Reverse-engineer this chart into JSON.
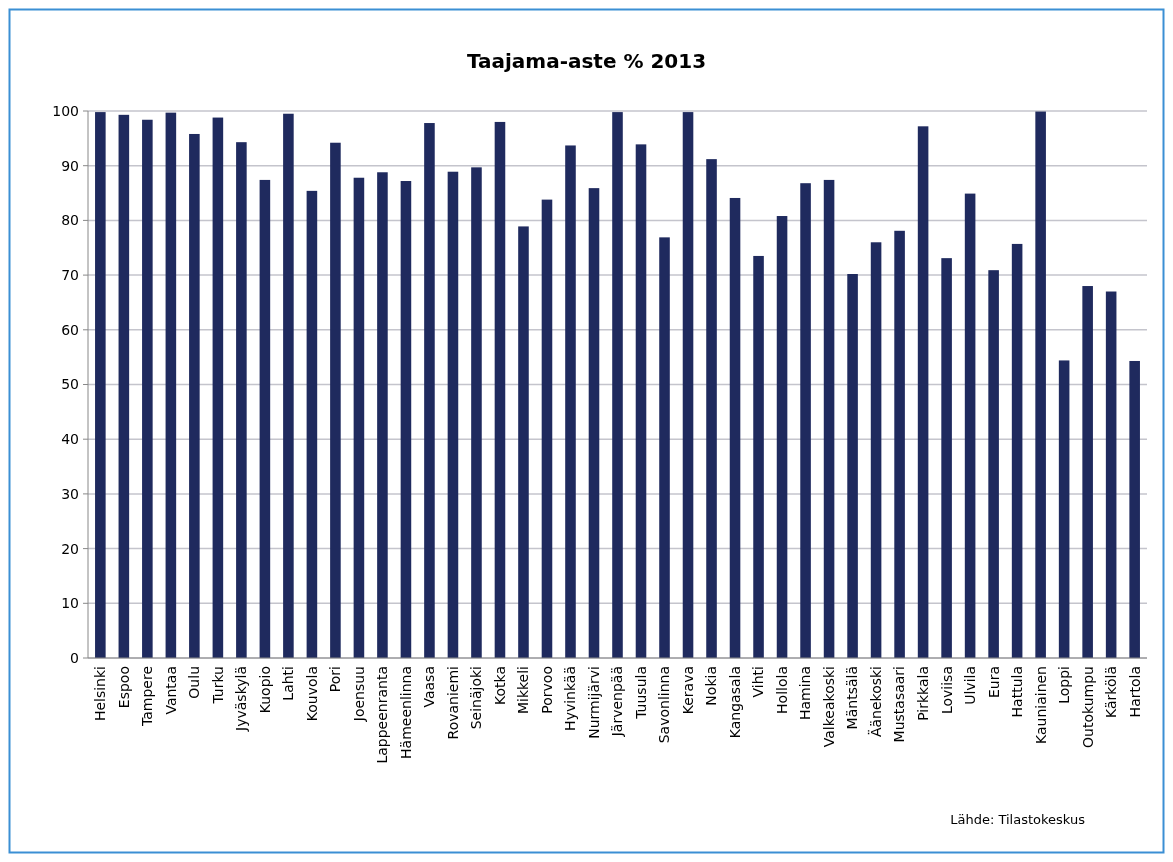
{
  "chart_data": {
    "type": "bar",
    "title": "Taajama-aste % 2013",
    "categories": [
      "Helsinki",
      "Espoo",
      "Tampere",
      "Vantaa",
      "Oulu",
      "Turku",
      "Jyväskylä",
      "Kuopio",
      "Lahti",
      "Kouvola",
      "Pori",
      "Joensuu",
      "Lappeenranta",
      "Hämeenlinna",
      "Vaasa",
      "Rovaniemi",
      "Seinäjoki",
      "Kotka",
      "Mikkeli",
      "Porvoo",
      "Hyvinkää",
      "Nurmijärvi",
      "Järvenpää",
      "Tuusula",
      "Savonlinna",
      "Kerava",
      "Nokia",
      "Kangasala",
      "Vihti",
      "Hollola",
      "Hamina",
      "Valkeakoski",
      "Mäntsälä",
      "Äänekoski",
      "Mustasaari",
      "Pirkkala",
      "Loviisa",
      "Ulvila",
      "Eura",
      "Hattula",
      "Kauniainen",
      "Loppi",
      "Outokumpu",
      "Kärkölä",
      "Hartola"
    ],
    "values": [
      99.8,
      99.3,
      98.4,
      99.7,
      95.8,
      98.8,
      94.3,
      87.4,
      99.5,
      85.4,
      94.2,
      87.8,
      88.8,
      87.2,
      97.8,
      88.9,
      89.7,
      98.0,
      78.9,
      83.8,
      93.7,
      85.9,
      99.8,
      93.9,
      76.9,
      99.8,
      91.2,
      84.1,
      73.5,
      80.8,
      86.8,
      87.4,
      70.2,
      76.0,
      78.1,
      97.2,
      73.1,
      84.9,
      70.9,
      75.7,
      99.9,
      54.4,
      68.0,
      67.0,
      54.3
    ],
    "color": "#1f2a5e",
    "ylim": [
      0,
      100
    ],
    "yticks": [
      0,
      10,
      20,
      30,
      40,
      50,
      60,
      70,
      80,
      90,
      100
    ],
    "grid": "y",
    "annotations": [
      "Lähde: Tilastokeskus"
    ]
  }
}
